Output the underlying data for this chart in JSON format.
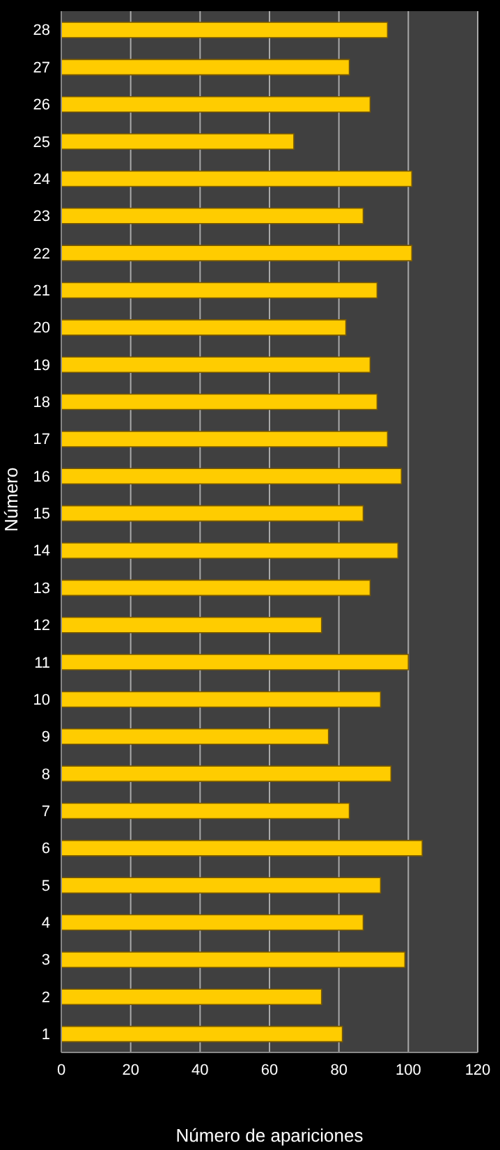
{
  "chart_data": {
    "type": "bar",
    "orientation": "horizontal",
    "xlabel": "Número  de apariciones",
    "ylabel": "Número",
    "categories": [
      "28",
      "27",
      "26",
      "25",
      "24",
      "23",
      "22",
      "21",
      "20",
      "19",
      "18",
      "17",
      "16",
      "15",
      "14",
      "13",
      "12",
      "11",
      "10",
      "9",
      "8",
      "7",
      "6",
      "5",
      "4",
      "3",
      "2",
      "1"
    ],
    "values": [
      94,
      83,
      89,
      67,
      101,
      87,
      101,
      91,
      82,
      89,
      91,
      94,
      98,
      87,
      97,
      89,
      75,
      100,
      92,
      77,
      95,
      83,
      104,
      92,
      87,
      99,
      75,
      81
    ],
    "color": "#ffcc00",
    "xlim": [
      0,
      120
    ],
    "xticks": [
      0,
      20,
      40,
      60,
      80,
      100,
      120
    ],
    "grid": "x",
    "legend": false
  }
}
